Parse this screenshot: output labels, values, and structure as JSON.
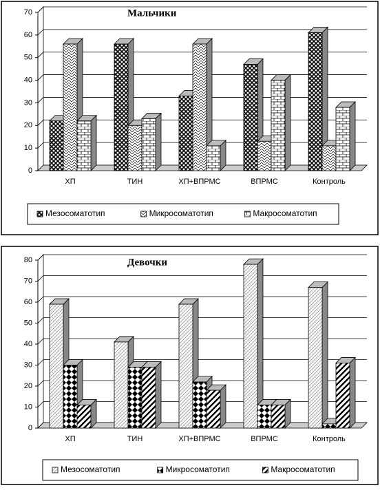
{
  "chart_data": [
    {
      "type": "bar",
      "title": "Мальчики",
      "categories": [
        "ХП",
        "ТИН",
        "ХП+ВПРМС",
        "ВПРМС",
        "Контроль"
      ],
      "series": [
        {
          "name": "Мезосоматотип",
          "values": [
            22,
            56,
            33,
            47,
            61
          ]
        },
        {
          "name": "Микросоматотип",
          "values": [
            56,
            20,
            56,
            13,
            11
          ]
        },
        {
          "name": "Макросоматотип",
          "values": [
            22,
            23,
            11,
            40,
            28
          ]
        }
      ],
      "ylim": [
        0,
        70
      ],
      "yticks": [
        0,
        10,
        20,
        30,
        40,
        50,
        60,
        70
      ],
      "grid": true
    },
    {
      "type": "bar",
      "title": "Девочки",
      "categories": [
        "ХП",
        "ТИН",
        "ХП+ВПРМС",
        "ВПРМС",
        "Контроль"
      ],
      "series": [
        {
          "name": "Мезосоматотип",
          "values": [
            59,
            41,
            59,
            78,
            67
          ]
        },
        {
          "name": "Микросоматотип",
          "values": [
            30,
            29,
            22,
            11,
            2
          ]
        },
        {
          "name": "Макросоматотип",
          "values": [
            11,
            29,
            18,
            11,
            31
          ]
        }
      ],
      "ylim": [
        0,
        80
      ],
      "yticks": [
        0,
        10,
        20,
        30,
        40,
        50,
        60,
        70,
        80
      ],
      "grid": true
    }
  ]
}
